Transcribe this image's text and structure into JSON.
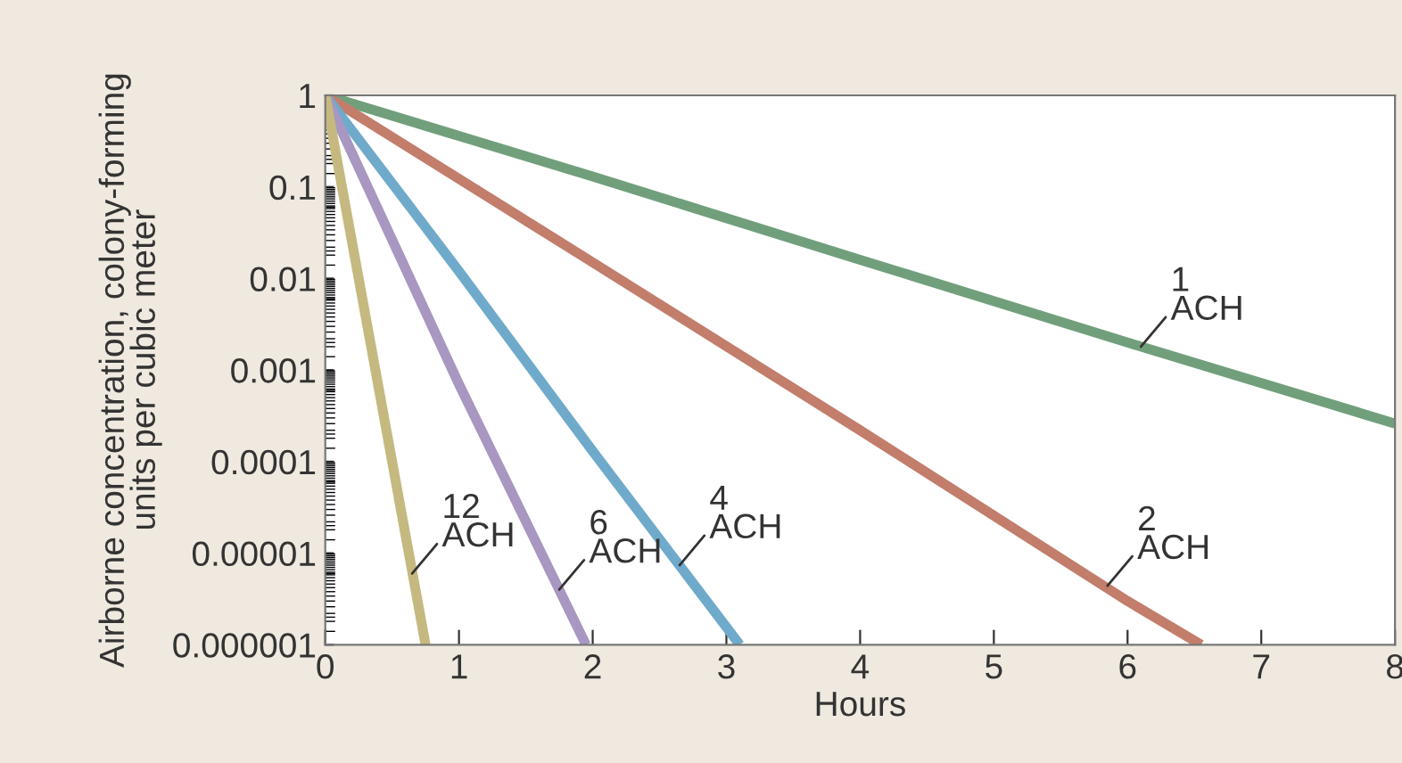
{
  "chart_data": {
    "type": "line",
    "xlabel": "Hours",
    "ylabel": "Airborne concentration, colony-forming\nunits per cubic meter",
    "log": "y",
    "xlim": [
      0,
      8
    ],
    "xticks": [
      0,
      1,
      2,
      3,
      4,
      5,
      6,
      7,
      8
    ],
    "ylim": [
      1e-06,
      1
    ],
    "yticks": [
      {
        "value": 1,
        "label": "1"
      },
      {
        "value": 0.1,
        "label": "0.1"
      },
      {
        "value": 0.01,
        "label": "0.01"
      },
      {
        "value": 0.001,
        "label": "0.001"
      },
      {
        "value": 0.0001,
        "label": "0.0001"
      },
      {
        "value": 1e-05,
        "label": "0.00001"
      },
      {
        "value": 1e-06,
        "label": "0.000001"
      }
    ],
    "grid": false,
    "line_style": "solid",
    "marker": "none",
    "series": [
      {
        "color": "#719f7c",
        "x": [
          0,
          2,
          4,
          6,
          8
        ],
        "values": [
          1,
          0.13,
          0.016,
          0.002,
          0.00026
        ]
      },
      {
        "color": "#c27d6b",
        "x": [
          0,
          2,
          4,
          6,
          6.55
        ],
        "values": [
          1,
          0.015,
          0.00022,
          3e-06,
          1e-06
        ]
      },
      {
        "color": "#6faacb",
        "x": [
          0,
          1,
          2,
          3.1
        ],
        "values": [
          1,
          0.012,
          0.00013,
          1e-06
        ]
      },
      {
        "color": "#a897c1",
        "x": [
          0,
          1,
          1.95
        ],
        "values": [
          1,
          0.0007,
          1e-06
        ]
      },
      {
        "color": "#c6b97f",
        "x": [
          0,
          0.75
        ],
        "values": [
          1,
          1e-06
        ]
      }
    ],
    "annotations": [
      {
        "text": "1\nACH",
        "x": 6.1,
        "y": 0.0018
      },
      {
        "text": "2\nACH",
        "x": 5.85,
        "y": 4.4e-06
      },
      {
        "text": "4\nACH",
        "x": 2.65,
        "y": 7.4e-06
      },
      {
        "text": "6\nACH",
        "x": 1.75,
        "y": 4e-06
      },
      {
        "text": "12\nACH",
        "x": 0.65,
        "y": 6e-06
      }
    ]
  }
}
